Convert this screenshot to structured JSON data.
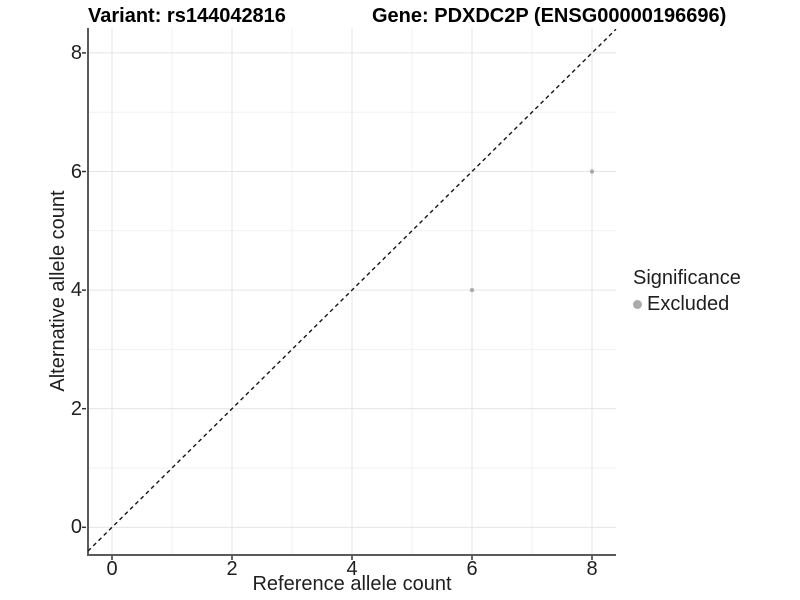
{
  "titles": {
    "variant": "Variant: rs144042816",
    "gene": "Gene: PDXDC2P (ENSG00000196696)"
  },
  "chart_data": {
    "type": "scatter",
    "title": "Variant: rs144042816  /  Gene: PDXDC2P (ENSG00000196696)",
    "xlabel": "Reference allele count",
    "ylabel": "Alternative allele count",
    "x_ticks": [
      0,
      2,
      4,
      6,
      8
    ],
    "y_ticks": [
      0,
      2,
      4,
      6,
      8
    ],
    "x_minor": [
      1,
      3,
      5,
      7
    ],
    "y_minor": [
      1,
      3,
      5,
      7
    ],
    "x_range": [
      -0.4,
      8.4
    ],
    "y_range": [
      -0.45,
      8.42
    ],
    "grid": true,
    "legend_position": "right",
    "identity_line": {
      "slope": 1,
      "intercept": 0,
      "style": "dashed",
      "color": "#141414"
    },
    "series": [
      {
        "name": "Excluded",
        "color": "#ababab",
        "points": [
          {
            "x": 6,
            "y": 4
          },
          {
            "x": 8,
            "y": 6
          }
        ]
      }
    ],
    "legend": {
      "title": "Significance",
      "items": [
        {
          "label": "Excluded",
          "color": "#ababab"
        }
      ]
    },
    "style_hints": {
      "major_grid_color": "#e4e4e4",
      "minor_grid_color": "#f1f1f1",
      "axis_line_color": "#5a5a5a",
      "tick_color": "#333333",
      "point_radius": 2.2,
      "background": "#ffffff"
    }
  }
}
